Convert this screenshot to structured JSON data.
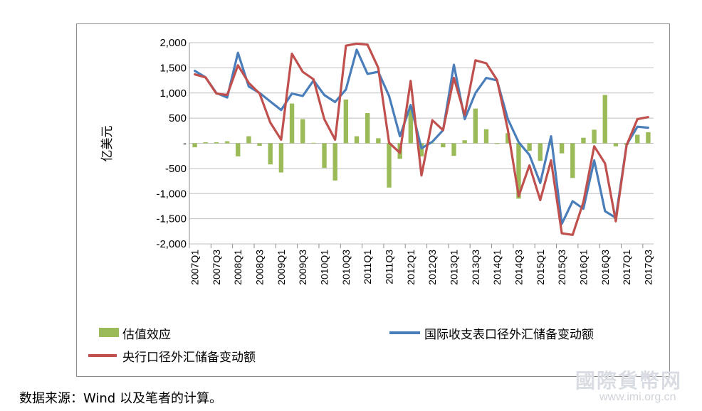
{
  "chart_data": {
    "type": "bar+line",
    "ylabel": "亿美元",
    "ylim": [
      -2000,
      2000
    ],
    "yticks": [
      2000,
      1500,
      1000,
      500,
      0,
      -500,
      -1000,
      -1500,
      -2000
    ],
    "ytick_labels": [
      "2,000",
      "1,500",
      "1,000",
      "500",
      "-",
      "-500",
      "-1,000",
      "-1,500",
      "-2,000"
    ],
    "categories": [
      "2007Q1",
      "2007Q2",
      "2007Q3",
      "2007Q4",
      "2008Q1",
      "2008Q2",
      "2008Q3",
      "2008Q4",
      "2009Q1",
      "2009Q2",
      "2009Q3",
      "2009Q4",
      "2010Q1",
      "2010Q2",
      "2010Q3",
      "2010Q4",
      "2011Q1",
      "2011Q2",
      "2011Q3",
      "2011Q4",
      "2012Q1",
      "2012Q2",
      "2012Q3",
      "2012Q4",
      "2013Q1",
      "2013Q2",
      "2013Q3",
      "2013Q4",
      "2014Q1",
      "2014Q2",
      "2014Q3",
      "2014Q4",
      "2015Q1",
      "2015Q2",
      "2015Q3",
      "2015Q4",
      "2016Q1",
      "2016Q2",
      "2016Q3",
      "2016Q4",
      "2017Q1",
      "2017Q2",
      "2017Q3"
    ],
    "xtick_labels": [
      "2007Q1",
      "2007Q3",
      "2008Q1",
      "2008Q3",
      "2009Q1",
      "2009Q3",
      "2010Q1",
      "2010Q3",
      "2011Q1",
      "2011Q3",
      "2012Q1",
      "2012Q3",
      "2013Q1",
      "2013Q3",
      "2014Q1",
      "2014Q3",
      "2015Q1",
      "2015Q3",
      "2016Q1",
      "2016Q3",
      "2017Q1",
      "2017Q3"
    ],
    "grid": true,
    "legend_placement": "bottom",
    "series": [
      {
        "name": "估值效应",
        "kind": "bar",
        "color": "#9bbb59",
        "values": [
          -80,
          20,
          20,
          40,
          -260,
          140,
          -50,
          -420,
          -580,
          790,
          480,
          10,
          -490,
          -740,
          870,
          140,
          600,
          100,
          -880,
          -310,
          740,
          -260,
          10,
          -80,
          -250,
          60,
          690,
          280,
          0,
          200,
          -1100,
          -150,
          -350,
          -40,
          -200,
          -690,
          110,
          270,
          960,
          -60,
          -30,
          170,
          220
        ]
      },
      {
        "name": "国际收支表口径外汇储备变动额",
        "kind": "line",
        "color": "#4a7ebb",
        "values": [
          1440,
          1310,
          1000,
          910,
          1800,
          1130,
          1000,
          830,
          660,
          990,
          940,
          1250,
          960,
          820,
          1070,
          1860,
          1380,
          1420,
          940,
          140,
          760,
          -100,
          30,
          260,
          1560,
          480,
          1000,
          1300,
          1250,
          480,
          20,
          -230,
          -790,
          140,
          -1600,
          -1150,
          -1300,
          -340,
          -1350,
          -1480,
          -30,
          330,
          310
        ]
      },
      {
        "name": "央行口径外汇储备变动额",
        "kind": "line",
        "color": "#c0504d",
        "values": [
          1370,
          1310,
          990,
          960,
          1550,
          1200,
          990,
          410,
          70,
          1780,
          1420,
          1270,
          480,
          70,
          1940,
          1980,
          1960,
          1500,
          10,
          -190,
          1240,
          -640,
          460,
          260,
          1300,
          560,
          1650,
          1590,
          1260,
          270,
          -1050,
          -440,
          -1130,
          -340,
          -1790,
          -1820,
          -1170,
          -60,
          -400,
          -1550,
          -40,
          480,
          520
        ]
      }
    ]
  },
  "source_note": "数据来源：Wind 以及笔者的计算。",
  "watermark": {
    "title": "國際貨幣网",
    "url": "www.imi.org.cn"
  }
}
